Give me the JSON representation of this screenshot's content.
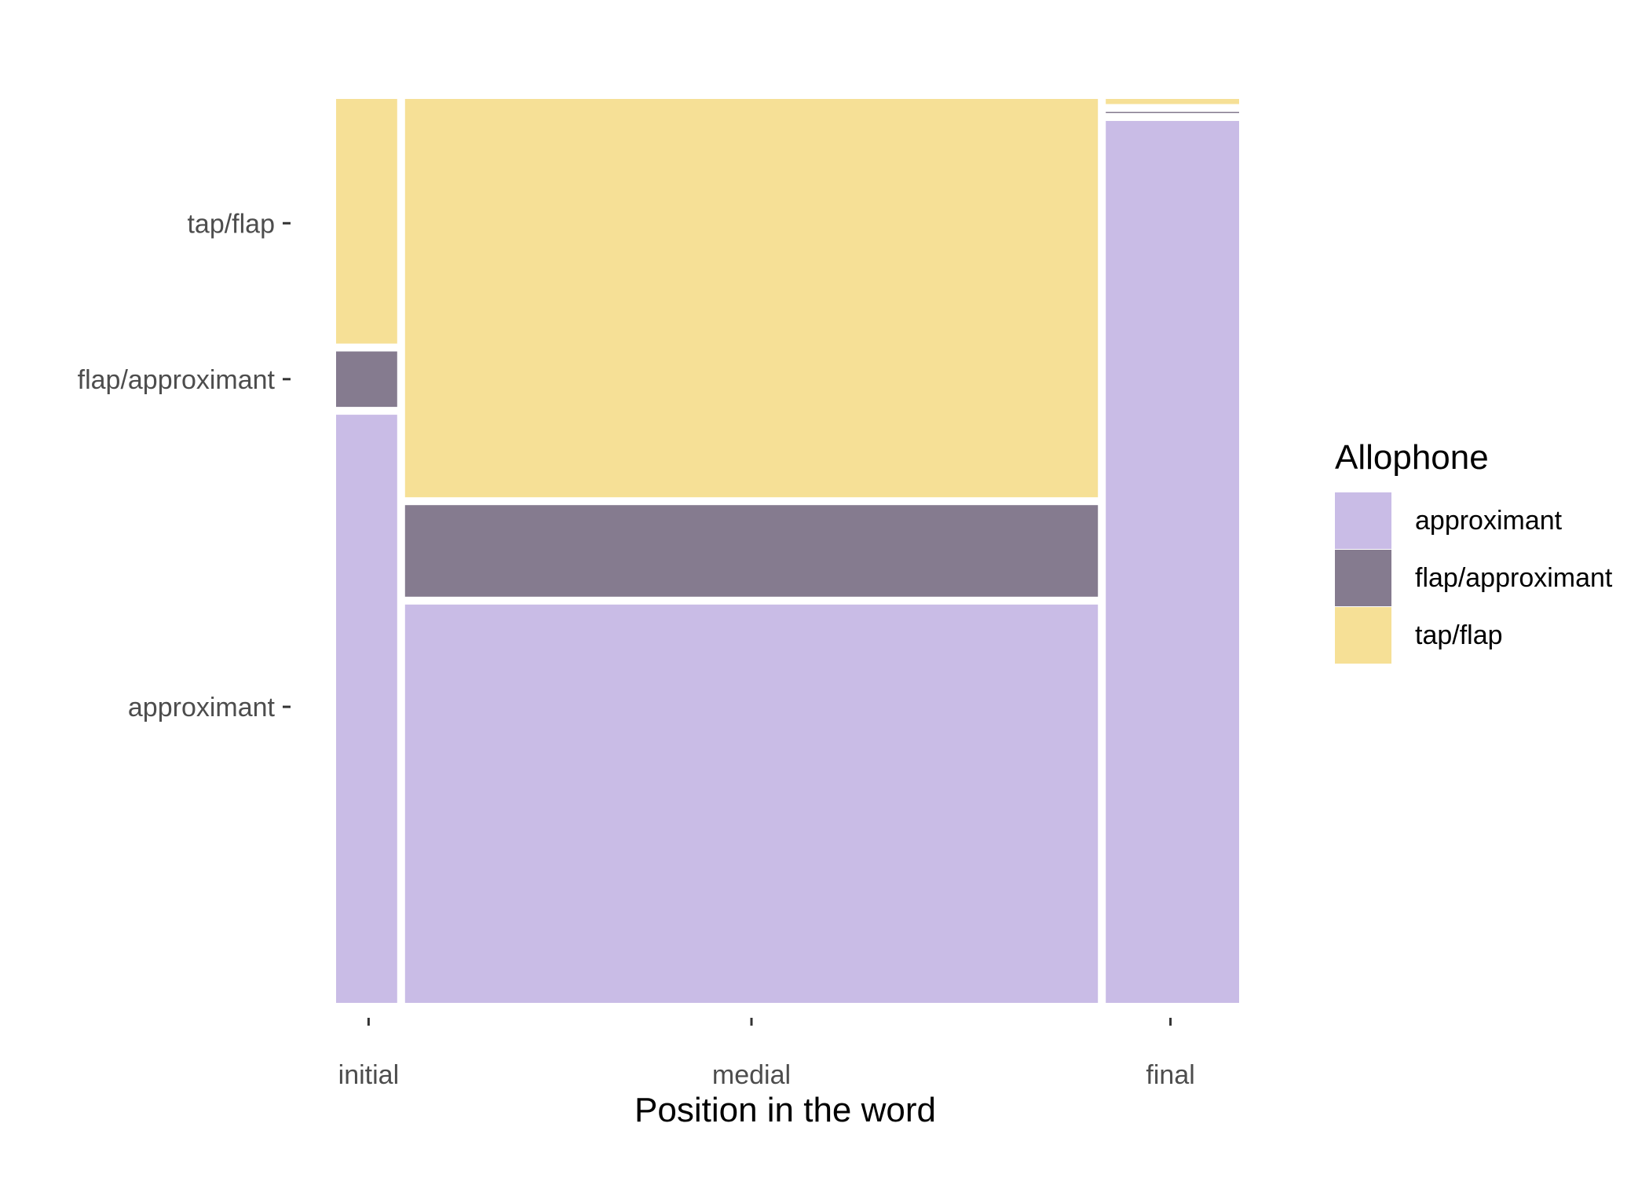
{
  "chart_data": {
    "type": "mosaic",
    "xlabel": "Position in the word",
    "ylabel": "",
    "categories": [
      "initial",
      "medial",
      "final"
    ],
    "column_widths": [
      0.072,
      0.776,
      0.152
    ],
    "series": [
      {
        "name": "approximant",
        "values": [
          0.655,
          0.445,
          0.98
        ],
        "color": "#C9BCE6"
      },
      {
        "name": "flap/approximant",
        "values": [
          0.07,
          0.11,
          0.01
        ],
        "color": "#857B8F"
      },
      {
        "name": "tap/flap",
        "values": [
          0.275,
          0.445,
          0.01
        ],
        "color": "#F6E096"
      }
    ],
    "y_tick_labels": [
      "approximant",
      "flap/approximant",
      "tap/flap"
    ],
    "legend": {
      "title": "Allophone",
      "position": "right"
    },
    "grid": false
  }
}
